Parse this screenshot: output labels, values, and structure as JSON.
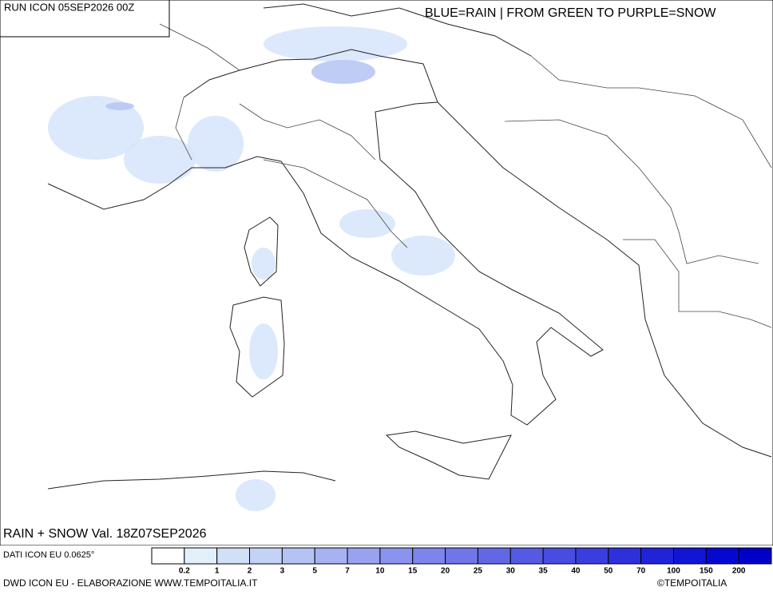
{
  "header": {
    "run": "RUN ICON 05SEP2026 00Z",
    "legend_note": "BLUE=RAIN | FROM GREEN TO PURPLE=SNOW"
  },
  "map": {
    "title": "RAIN + SNOW Val. 18Z07SEP2026"
  },
  "legend": {
    "source": "DATI ICON EU 0.0625°",
    "labels": [
      0.2,
      1,
      2,
      3,
      5,
      7,
      10,
      15,
      20,
      25,
      30,
      35,
      40,
      50,
      70,
      100,
      150,
      200
    ],
    "colors": [
      "#ffffff",
      "#e1f0fb",
      "#cfe0f7",
      "#c3d3f6",
      "#b4c2f4",
      "#a6b2f1",
      "#98a2ef",
      "#8a93ed",
      "#7d84eb",
      "#7076e8",
      "#6268e5",
      "#555ae3",
      "#484ce1",
      "#3a3ede",
      "#2d30db",
      "#2023d8",
      "#1215d5",
      "#0608d2",
      "#0000c8"
    ]
  },
  "footer": {
    "credit": "DWD ICON EU - ELABORAZIONE WWW.TEMPOITALIA.IT",
    "copyright": "©TEMPOITALIA"
  }
}
